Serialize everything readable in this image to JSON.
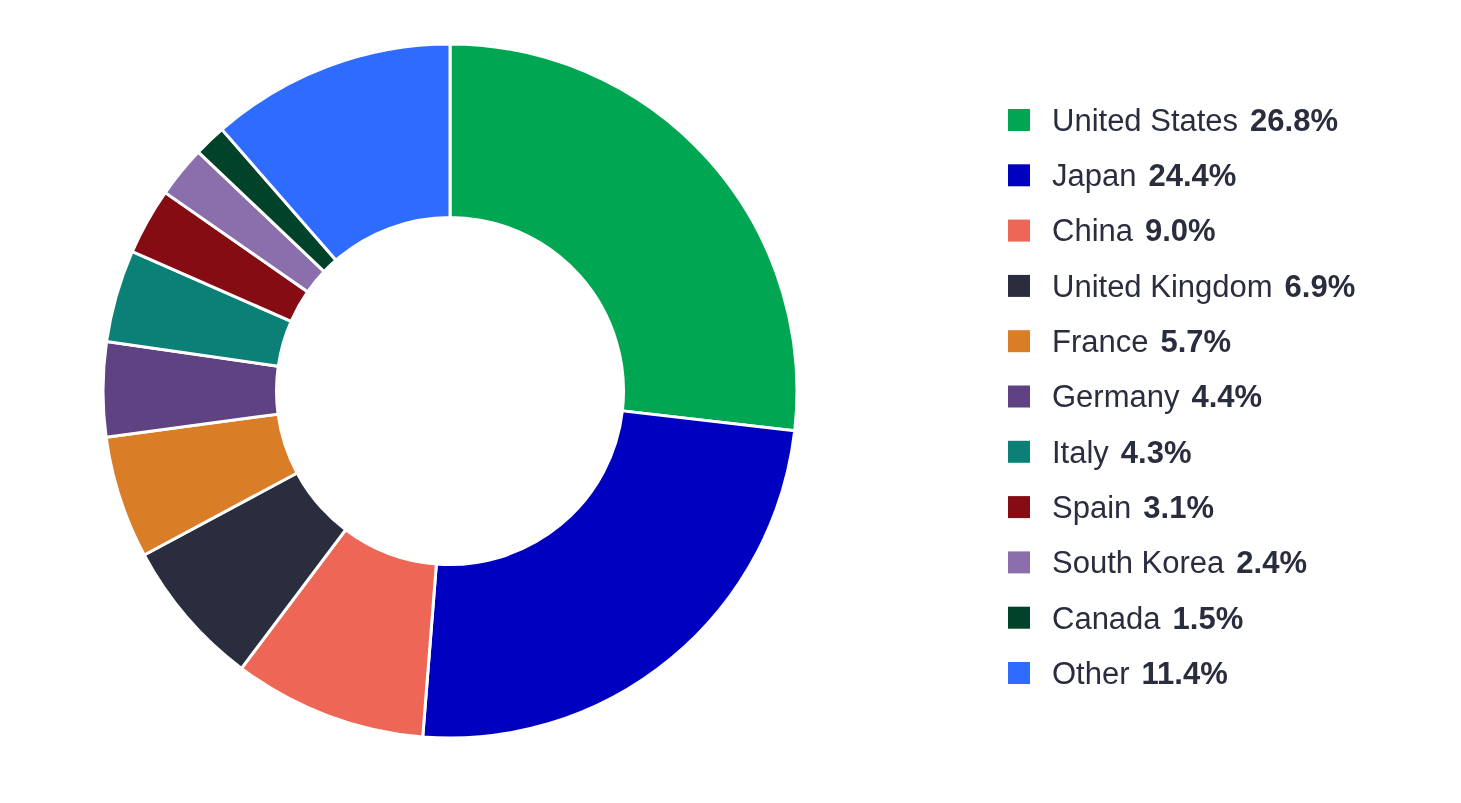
{
  "chart_data": {
    "type": "donut",
    "categories": [
      "United States",
      "Japan",
      "China",
      "United Kingdom",
      "France",
      "Germany",
      "Italy",
      "Spain",
      "South Korea",
      "Canada",
      "Other"
    ],
    "values": [
      26.8,
      24.4,
      9.0,
      6.9,
      5.7,
      4.4,
      4.3,
      3.1,
      2.4,
      1.5,
      11.4
    ],
    "colors": [
      "#00a651",
      "#0000c0",
      "#ee6655",
      "#2a2d3e",
      "#d97d27",
      "#5e4282",
      "#0a8076",
      "#860c14",
      "#8a6fac",
      "#00422a",
      "#2e6bff"
    ],
    "value_labels": [
      "26.8%",
      "24.4%",
      "9.0%",
      "6.9%",
      "5.7%",
      "4.4%",
      "4.3%",
      "3.1%",
      "2.4%",
      "1.5%",
      "11.4%"
    ],
    "legend": "right"
  }
}
